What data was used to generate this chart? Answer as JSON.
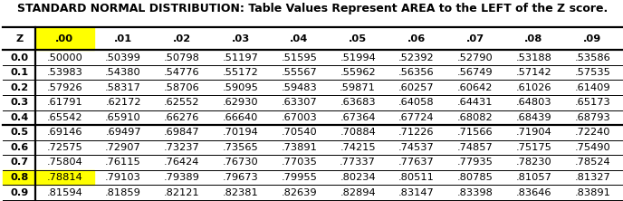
{
  "title": "STANDARD NORMAL DISTRIBUTION: Table Values Represent AREA to the LEFT of the Z score.",
  "col_headers": [
    "Z",
    ".00",
    ".01",
    ".02",
    ".03",
    ".04",
    ".05",
    ".06",
    ".07",
    ".08",
    ".09"
  ],
  "rows": [
    [
      "0.0",
      ".50000",
      ".50399",
      ".50798",
      ".51197",
      ".51595",
      ".51994",
      ".52392",
      ".52790",
      ".53188",
      ".53586"
    ],
    [
      "0.1",
      ".53983",
      ".54380",
      ".54776",
      ".55172",
      ".55567",
      ".55962",
      ".56356",
      ".56749",
      ".57142",
      ".57535"
    ],
    [
      "0.2",
      ".57926",
      ".58317",
      ".58706",
      ".59095",
      ".59483",
      ".59871",
      ".60257",
      ".60642",
      ".61026",
      ".61409"
    ],
    [
      "0.3",
      ".61791",
      ".62172",
      ".62552",
      ".62930",
      ".63307",
      ".63683",
      ".64058",
      ".64431",
      ".64803",
      ".65173"
    ],
    [
      "0.4",
      ".65542",
      ".65910",
      ".66276",
      ".66640",
      ".67003",
      ".67364",
      ".67724",
      ".68082",
      ".68439",
      ".68793"
    ],
    [
      "0.5",
      ".69146",
      ".69497",
      ".69847",
      ".70194",
      ".70540",
      ".70884",
      ".71226",
      ".71566",
      ".71904",
      ".72240"
    ],
    [
      "0.6",
      ".72575",
      ".72907",
      ".73237",
      ".73565",
      ".73891",
      ".74215",
      ".74537",
      ".74857",
      ".75175",
      ".75490"
    ],
    [
      "0.7",
      ".75804",
      ".76115",
      ".76424",
      ".76730",
      ".77035",
      ".77337",
      ".77637",
      ".77935",
      ".78230",
      ".78524"
    ],
    [
      "0.8",
      ".78814",
      ".79103",
      ".79389",
      ".79673",
      ".79955",
      ".80234",
      ".80511",
      ".80785",
      ".81057",
      ".81327"
    ],
    [
      "0.9",
      ".81594",
      ".81859",
      ".82121",
      ".82381",
      ".82639",
      ".82894",
      ".83147",
      ".83398",
      ".83646",
      ".83891"
    ]
  ],
  "highlight_header_col": 1,
  "highlight_row": 8,
  "highlight_row_col": 1,
  "thick_border_after_row": 4,
  "bg_color": "#ffffff",
  "highlight_yellow": "#ffff00",
  "title_fontsize": 9.0,
  "cell_fontsize": 8.2
}
